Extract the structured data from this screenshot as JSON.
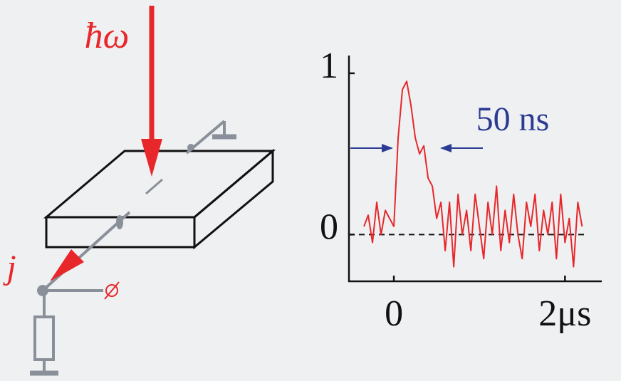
{
  "diagram": {
    "photon_label": "ħω",
    "current_label": "j"
  },
  "chart_data": {
    "type": "line",
    "annotation": "50 ns",
    "x": [
      -0.35,
      -0.3,
      -0.25,
      -0.2,
      -0.15,
      -0.1,
      -0.05,
      0,
      0.05,
      0.1,
      0.15,
      0.2,
      0.25,
      0.3,
      0.35,
      0.4,
      0.45,
      0.5,
      0.55,
      0.6,
      0.65,
      0.7,
      0.75,
      0.8,
      0.85,
      0.9,
      0.95,
      1,
      1.05,
      1.1,
      1.15,
      1.2,
      1.25,
      1.3,
      1.35,
      1.4,
      1.45,
      1.5,
      1.55,
      1.6,
      1.65,
      1.7,
      1.75,
      1.8,
      1.85,
      1.9,
      1.95,
      2,
      2.05,
      2.1,
      2.15,
      2.2
    ],
    "series": [
      {
        "color": "#e8272a",
        "values": [
          0.05,
          0.12,
          -0.05,
          0.2,
          0,
          0.15,
          0.1,
          0.05,
          0.6,
          0.9,
          0.95,
          0.8,
          0.6,
          0.5,
          0.55,
          0.35,
          0.3,
          0.1,
          0.2,
          -0.1,
          0.2,
          -0.2,
          0.25,
          0,
          0.15,
          -0.1,
          0.25,
          0.05,
          -0.15,
          0.2,
          0,
          0.3,
          -0.1,
          0.15,
          -0.05,
          0.25,
          0,
          -0.15,
          0.2,
          0.05,
          0.25,
          -0.1,
          0.15,
          0,
          0.2,
          -0.15,
          0.25,
          -0.05,
          0.1,
          -0.2,
          0.2,
          0.05
        ]
      }
    ],
    "xlim": [
      -0.525,
      2.43
    ],
    "ylim": [
      -0.29,
      1.11
    ],
    "xticks": [
      0,
      {
        "value": 2,
        "label": "2μs"
      }
    ],
    "yticks": [
      0,
      1
    ]
  }
}
